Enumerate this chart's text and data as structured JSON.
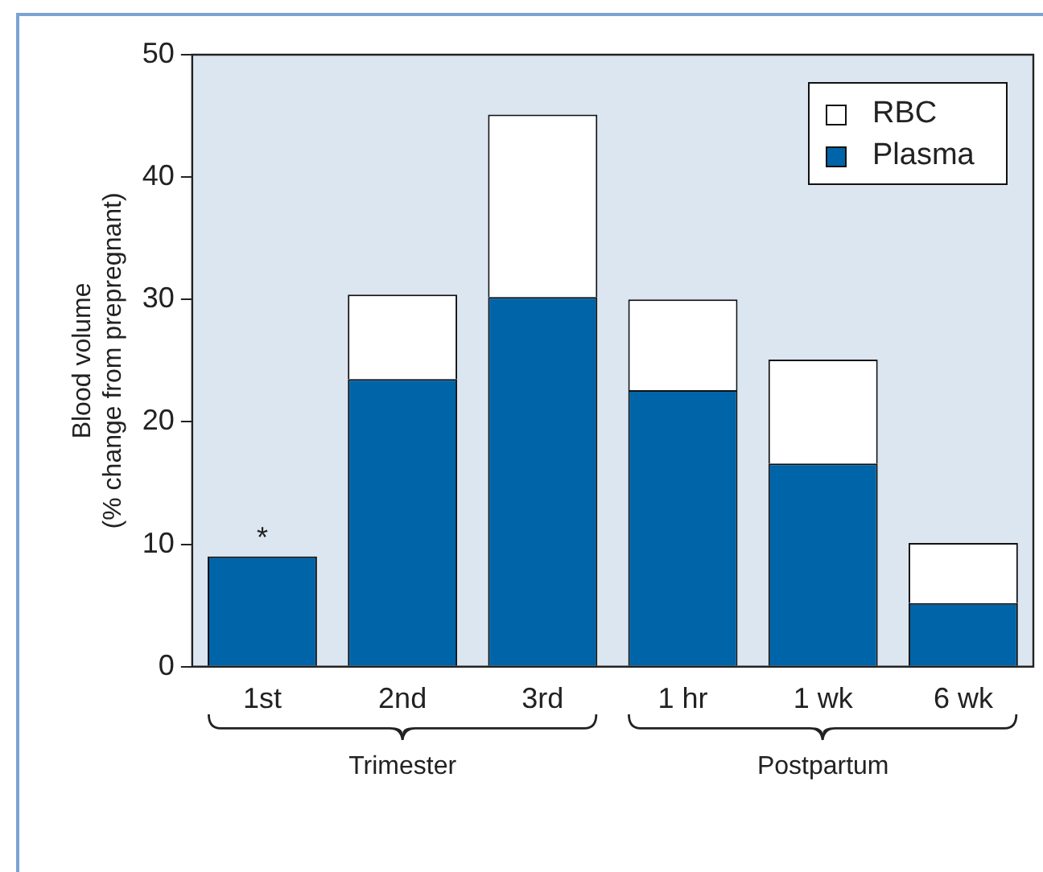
{
  "chart_data": {
    "type": "bar",
    "stacked": true,
    "ylabel": "Blood volume\n(% change from prepregnant)",
    "categories": [
      "1st",
      "2nd",
      "3rd",
      "1 hr",
      "1 wk",
      "6 wk"
    ],
    "series": [
      {
        "name": "Plasma",
        "color": "#0064a8",
        "values": [
          9,
          23.5,
          30.2,
          22.6,
          16.6,
          5.2
        ]
      },
      {
        "name": "RBC",
        "color": "#ffffff",
        "values": [
          0,
          6.9,
          14.9,
          7.4,
          8.5,
          4.9
        ]
      }
    ],
    "ylim": [
      0,
      50
    ],
    "yticks": [
      0,
      10,
      20,
      30,
      40,
      50
    ],
    "grid": false,
    "legend": "top right",
    "annotations": [
      {
        "text": "*",
        "x": "1st",
        "y": 9
      },
      "Trimester",
      "Postpartum"
    ]
  }
}
